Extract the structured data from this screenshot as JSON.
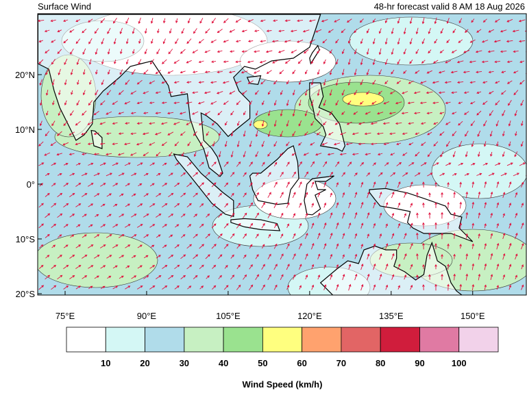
{
  "header": {
    "title": "Surface Wind",
    "subtitle": "48-hr forecast valid 8 AM 18 Aug 2026"
  },
  "map": {
    "lon_ticks": [
      {
        "value": 75,
        "label": "75°E"
      },
      {
        "value": 90,
        "label": "90°E"
      },
      {
        "value": 105,
        "label": "105°E"
      },
      {
        "value": 120,
        "label": "120°E"
      },
      {
        "value": 135,
        "label": "135°E"
      },
      {
        "value": 150,
        "label": "150°E"
      }
    ],
    "lat_ticks": [
      {
        "value": 20,
        "label": "20°N"
      },
      {
        "value": 10,
        "label": "10°N"
      },
      {
        "value": 0,
        "label": "0°"
      },
      {
        "value": -10,
        "label": "10°S"
      },
      {
        "value": -20,
        "label": "20°S"
      }
    ]
  },
  "colorbar": {
    "colors": [
      "#ffffff",
      "#d4f7f5",
      "#b0dcea",
      "#c7f0c2",
      "#9ae28f",
      "#ffff7f",
      "#ffa26e",
      "#e26565",
      "#d01d3c",
      "#e07aa3",
      "#f2d2ea"
    ],
    "ticks": [
      10,
      20,
      30,
      40,
      50,
      60,
      70,
      80,
      90,
      100
    ],
    "label": "Wind Speed (km/h)"
  }
}
